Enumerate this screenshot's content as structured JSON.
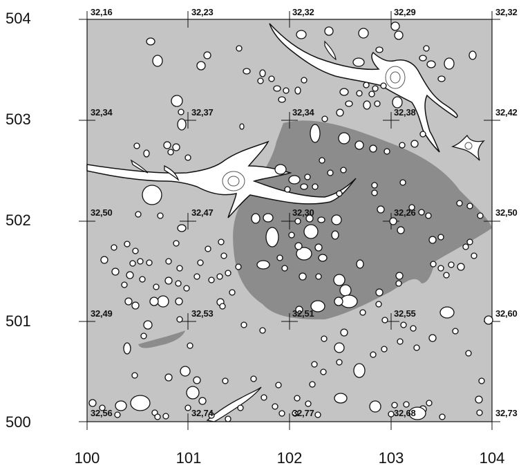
{
  "map": {
    "y_axis_labels": [
      "504",
      "503",
      "502",
      "501",
      "500"
    ],
    "x_axis_labels": [
      "100",
      "101",
      "102",
      "103",
      "104"
    ],
    "elevation_rows": [
      [
        "32,16",
        "32,23",
        "32,32",
        "32,29",
        "32,32"
      ],
      [
        "32,34",
        "32,37",
        "32,34",
        "32,38",
        "32,42"
      ],
      [
        "32,50",
        "32,47",
        "32,30",
        "32,26",
        "32,50"
      ],
      [
        "32,49",
        "32,53",
        "32,51",
        "32,55",
        "32,60"
      ],
      [
        "32,56",
        "32,74",
        "32,77",
        "32,68",
        "32,73"
      ]
    ],
    "colors": {
      "background_fill": "#c4c4c4",
      "dark_area": "#8c8c8c",
      "features": "#ffffff",
      "outline": "#111111"
    }
  }
}
